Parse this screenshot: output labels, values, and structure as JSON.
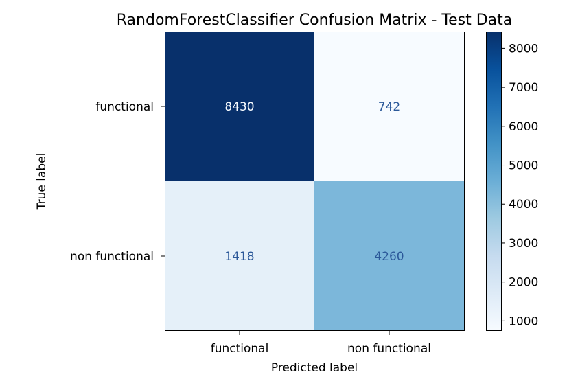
{
  "chart_data": {
    "type": "heatmap",
    "title": "RandomForestClassifier Confusion Matrix - Test Data",
    "xlabel": "Predicted label",
    "ylabel": "True label",
    "x_categories": [
      "functional",
      "non functional"
    ],
    "y_categories": [
      "functional",
      "non functional"
    ],
    "matrix": [
      [
        8430,
        742
      ],
      [
        1418,
        4260
      ]
    ],
    "colormap": "Blues",
    "color_range": [
      742,
      8430
    ],
    "colorbar_ticks": [
      1000,
      2000,
      3000,
      4000,
      5000,
      6000,
      7000,
      8000
    ],
    "colors": {
      "low": "#f7fbff",
      "high": "#08306b",
      "text_on_dark": "#f7fbff",
      "text_on_light": "#2b5899"
    }
  }
}
